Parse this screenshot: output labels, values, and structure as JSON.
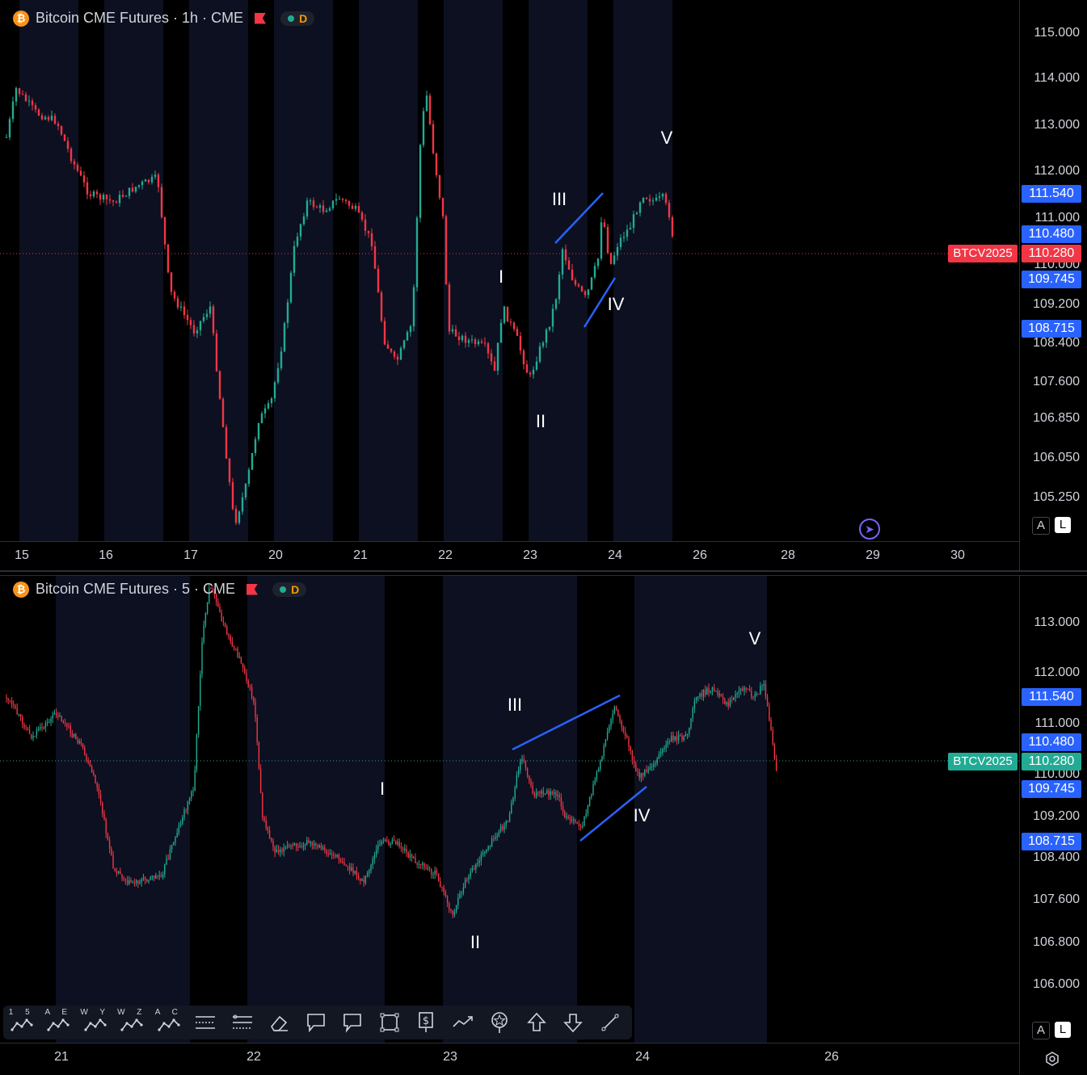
{
  "top": {
    "title": "Bitcoin CME Futures · 1h · CME",
    "badge": "D",
    "symbol": "BTCV2025",
    "yticks": [
      "115.000",
      "114.000",
      "113.000",
      "112.000",
      "111.000",
      "110.000",
      "109.200",
      "108.400",
      "107.600",
      "106.850",
      "106.050",
      "105.250"
    ],
    "price_tags": [
      {
        "label": "111.540",
        "value": 111.54,
        "color": "#2962ff"
      },
      {
        "label": "110.480",
        "value": 110.48,
        "color": "#2962ff"
      },
      {
        "label": "110.280",
        "value": 110.28,
        "color": "#f23645"
      },
      {
        "label": "109.745",
        "value": 109.745,
        "color": "#2962ff"
      },
      {
        "label": "108.715",
        "value": 108.715,
        "color": "#2962ff"
      }
    ],
    "symbol_color": "#f23645",
    "xticks": [
      "15",
      "16",
      "17",
      "20",
      "21",
      "22",
      "23",
      "24",
      "26",
      "28",
      "29",
      "30"
    ],
    "waves": [
      {
        "label": "I"
      },
      {
        "label": "II"
      },
      {
        "label": "III"
      },
      {
        "label": "IV"
      },
      {
        "label": "V"
      }
    ],
    "btn_a": "A",
    "btn_l": "L"
  },
  "bottom": {
    "title": "Bitcoin CME Futures · 5 · CME",
    "badge": "D",
    "symbol": "BTCV2025",
    "yticks": [
      "113.000",
      "112.000",
      "111.000",
      "110.000",
      "109.200",
      "108.400",
      "107.600",
      "106.800",
      "106.000"
    ],
    "price_tags": [
      {
        "label": "111.540",
        "value": 111.54,
        "color": "#2962ff"
      },
      {
        "label": "110.480",
        "value": 110.48,
        "color": "#2962ff"
      },
      {
        "label": "110.280",
        "value": 110.28,
        "color": "#22ab94"
      },
      {
        "label": "109.745",
        "value": 109.745,
        "color": "#2962ff"
      },
      {
        "label": "108.715",
        "value": 108.715,
        "color": "#2962ff"
      }
    ],
    "symbol_color": "#22ab94",
    "xticks": [
      "21",
      "22",
      "23",
      "24",
      "26"
    ],
    "waves": [
      {
        "label": "I"
      },
      {
        "label": "II"
      },
      {
        "label": "III"
      },
      {
        "label": "IV"
      },
      {
        "label": "V"
      }
    ],
    "btn_a": "A",
    "btn_l": "L"
  },
  "toolbar": {
    "tools": [
      {
        "name": "elliott-wave-15-icon",
        "label": "1 5"
      },
      {
        "name": "elliott-wave-ae-icon",
        "label": "A E"
      },
      {
        "name": "elliott-wave-wy-icon",
        "label": "W Y"
      },
      {
        "name": "elliott-wave-wz-icon",
        "label": "W Z"
      },
      {
        "name": "elliott-wave-ac-icon",
        "label": "A C"
      },
      {
        "name": "long-position-icon",
        "label": ""
      },
      {
        "name": "short-position-icon",
        "label": ""
      },
      {
        "name": "eraser-icon",
        "label": ""
      },
      {
        "name": "callout-icon",
        "label": ""
      },
      {
        "name": "comment-icon",
        "label": ""
      },
      {
        "name": "rectangle-icon",
        "label": ""
      },
      {
        "name": "price-label-icon",
        "label": ""
      },
      {
        "name": "path-icon",
        "label": ""
      },
      {
        "name": "star-marker-icon",
        "label": ""
      },
      {
        "name": "arrow-up-icon",
        "label": ""
      },
      {
        "name": "arrow-down-icon",
        "label": ""
      },
      {
        "name": "trend-line-icon",
        "label": ""
      }
    ]
  }
}
